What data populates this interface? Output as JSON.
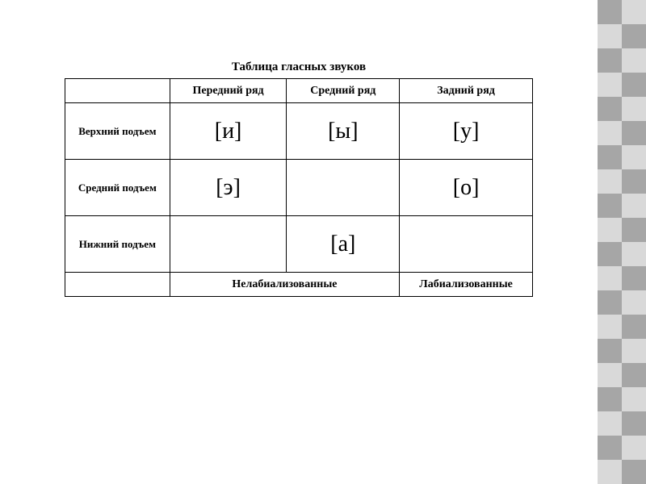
{
  "title": "Таблица гласных звуков",
  "columns": {
    "front": "Передний ряд",
    "mid": "Средний ряд",
    "back": "Задний ряд"
  },
  "rows": {
    "high": {
      "label": "Верхний подъем",
      "front": "[и]",
      "mid": "[ы]",
      "back": "[у]"
    },
    "middle": {
      "label": "Средний подъем",
      "front": "[э]",
      "mid": "",
      "back": "[о]"
    },
    "low": {
      "label": "Нижний подъем",
      "front": "",
      "mid": "[а]",
      "back": ""
    }
  },
  "footer": {
    "nonlab": "Нелабиализованные",
    "lab": "Лабиализованные"
  },
  "styling": {
    "title_fontsize": 15,
    "header_fontsize": 14,
    "rowlabel_fontsize": 13,
    "vowel_fontsize": 28,
    "border_color": "#000000",
    "background": "#ffffff",
    "checker_light": "#d9d9d9",
    "checker_dark": "#a6a6a6",
    "checker_cell_size": 30
  }
}
